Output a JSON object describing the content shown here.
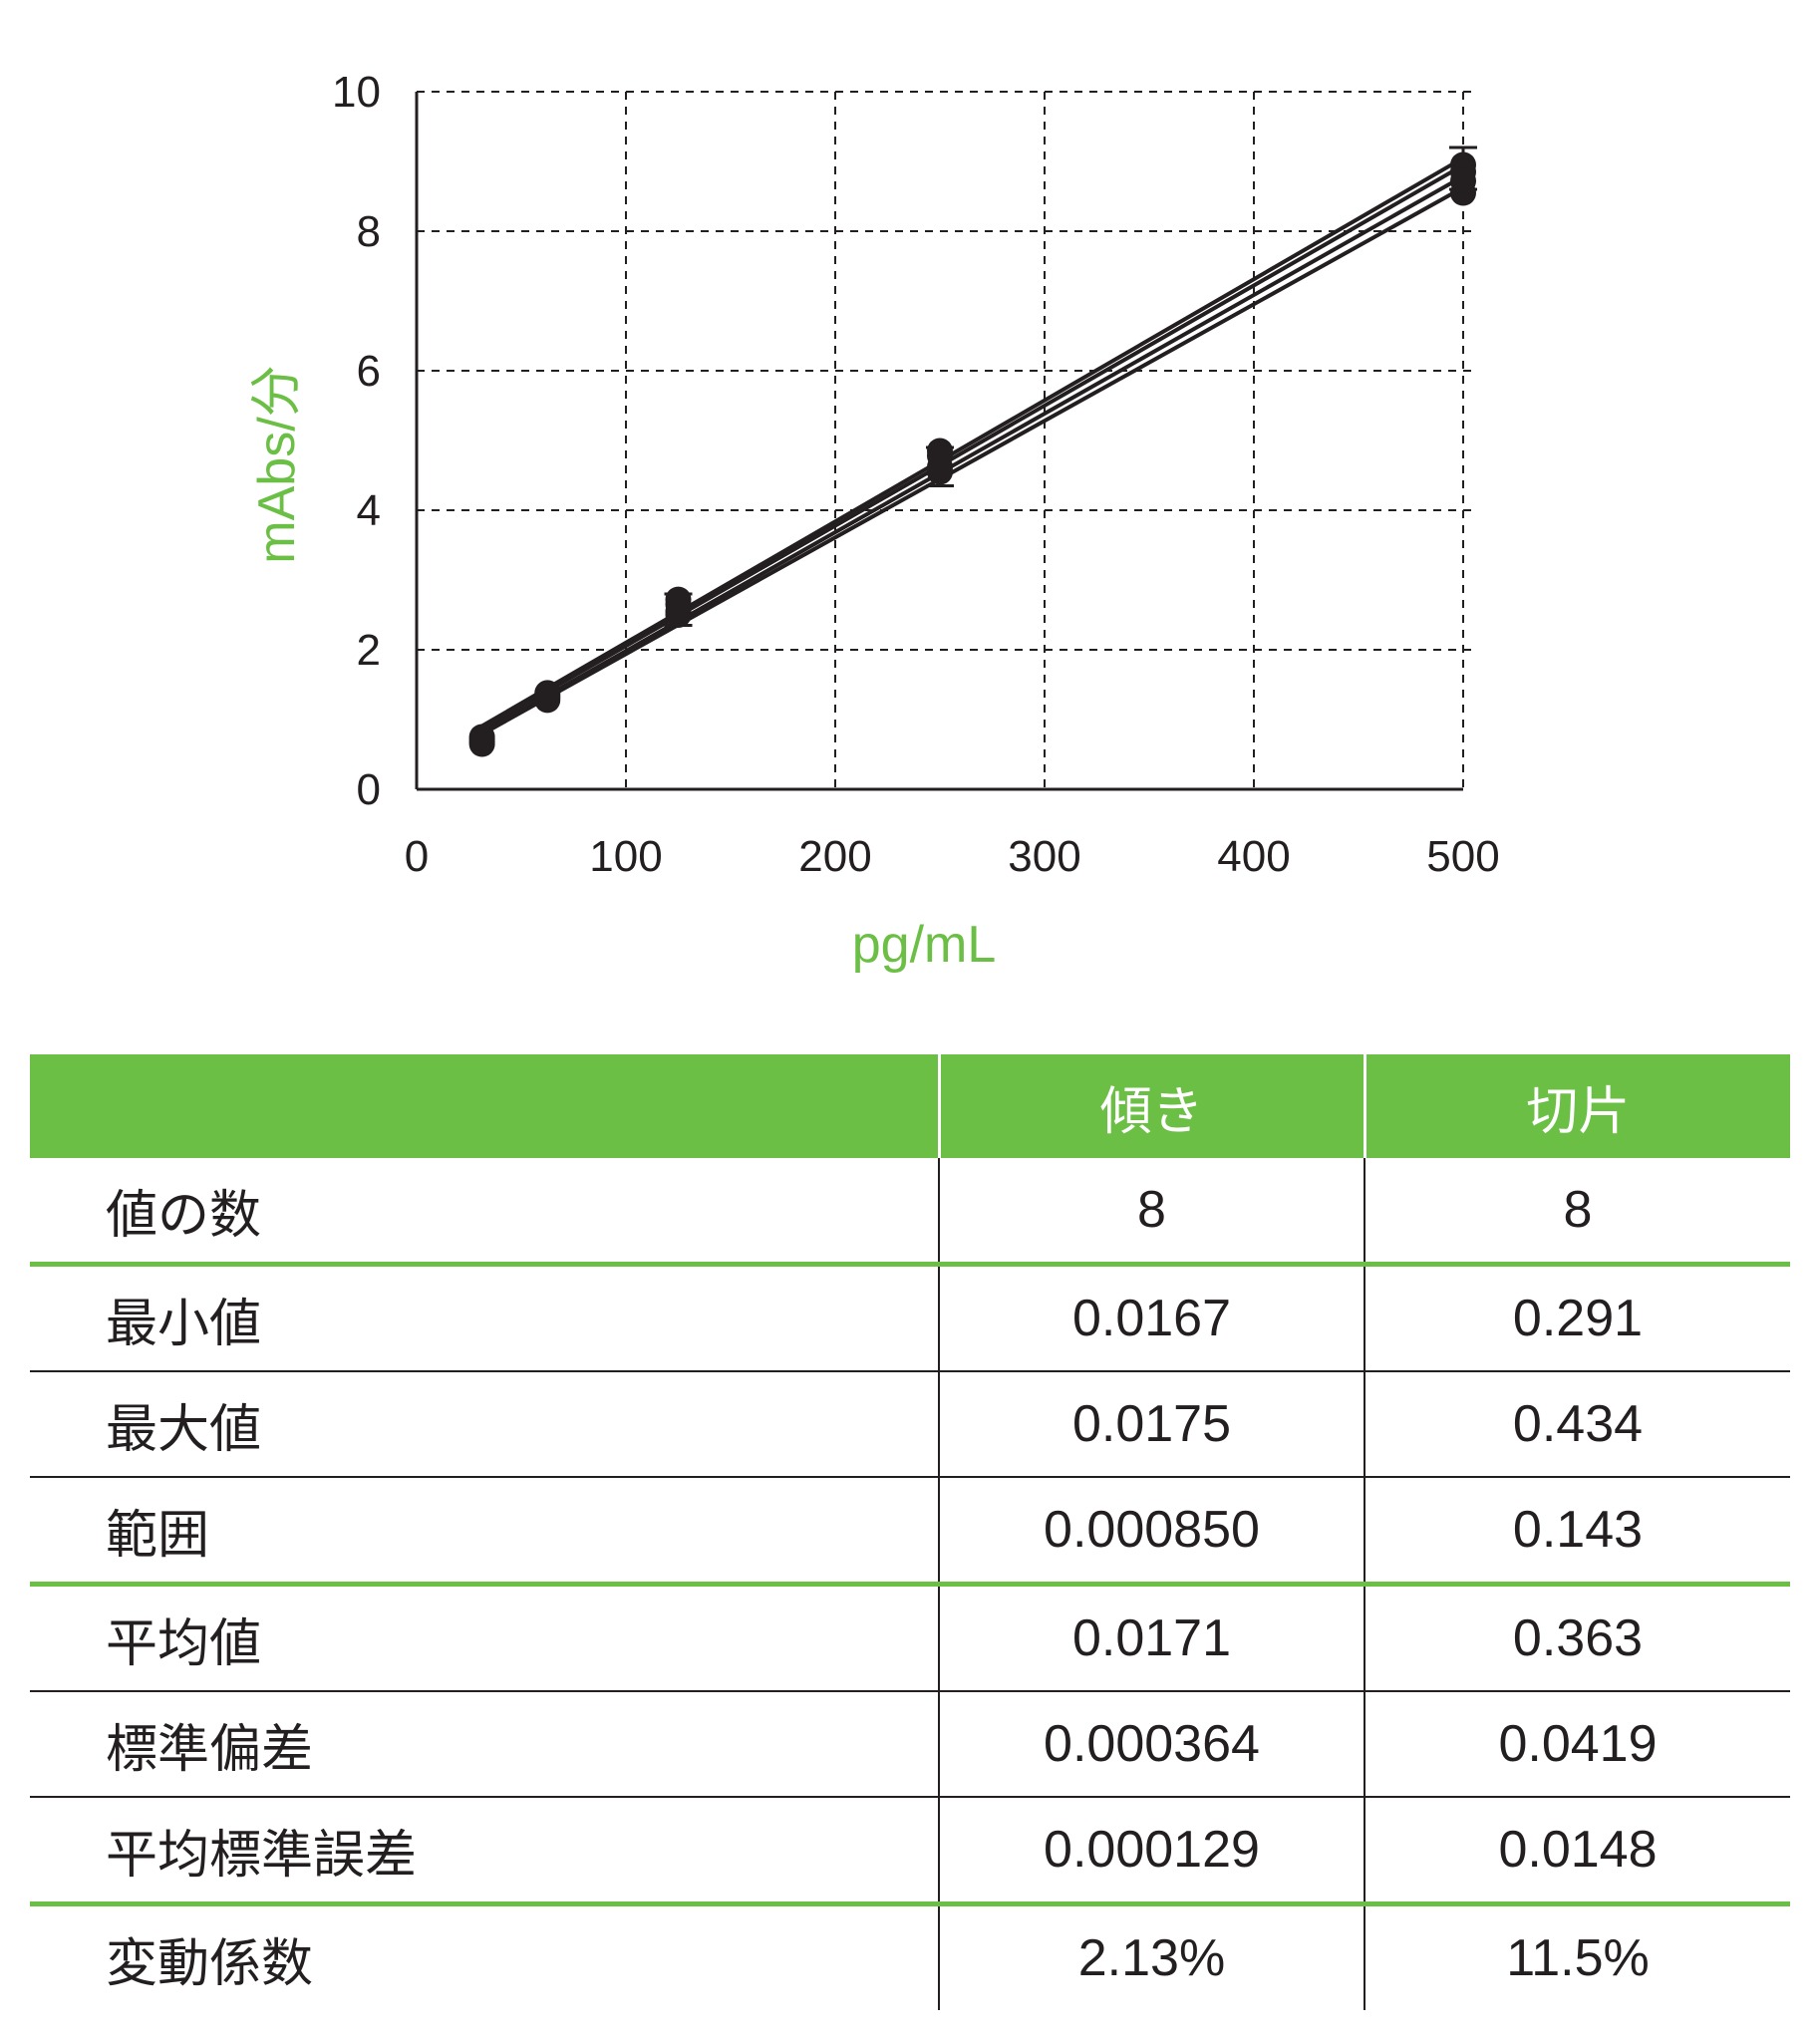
{
  "chart_data": {
    "type": "line",
    "xlabel": "pg/mL",
    "ylabel": "mAbs/分",
    "xlim": [
      0,
      500
    ],
    "ylim": [
      0,
      10
    ],
    "xticks": [
      "0",
      "100",
      "200",
      "300",
      "400",
      "500"
    ],
    "yticks": [
      "0",
      "2",
      "4",
      "6",
      "8",
      "10"
    ],
    "grid": true,
    "x": [
      31.25,
      62.5,
      125,
      250,
      500
    ],
    "series": [
      {
        "values": [
          0.75,
          1.38,
          2.72,
          4.85,
          8.95
        ]
      },
      {
        "values": [
          0.72,
          1.35,
          2.65,
          4.78,
          8.85
        ]
      },
      {
        "values": [
          0.68,
          1.32,
          2.55,
          4.62,
          8.72
        ]
      },
      {
        "values": [
          0.65,
          1.28,
          2.5,
          4.55,
          8.55
        ]
      }
    ],
    "error_bars": {
      "x": [
        125,
        250,
        500
      ],
      "low": [
        2.35,
        4.35,
        8.6
      ],
      "high": [
        2.8,
        4.9,
        9.2
      ]
    },
    "color": "#231f20",
    "accent": "#6cbf45"
  },
  "table": {
    "headers": [
      "",
      "傾き",
      "切片"
    ],
    "rows": [
      {
        "label": "値の数",
        "slope": "8",
        "intercept": "8"
      },
      {
        "label": "最小値",
        "slope": "0.0167",
        "intercept": "0.291"
      },
      {
        "label": "最大値",
        "slope": "0.0175",
        "intercept": "0.434"
      },
      {
        "label": "範囲",
        "slope": "0.000850",
        "intercept": "0.143"
      },
      {
        "label": "平均値",
        "slope": "0.0171",
        "intercept": "0.363"
      },
      {
        "label": "標準偏差",
        "slope": "0.000364",
        "intercept": "0.0419"
      },
      {
        "label": "平均標準誤差",
        "slope": "0.000129",
        "intercept": "0.0148"
      },
      {
        "label": "変動係数",
        "slope": "2.13%",
        "intercept": "11.5%"
      }
    ]
  }
}
